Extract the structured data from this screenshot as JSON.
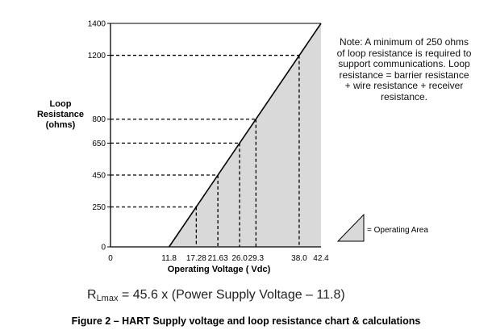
{
  "chart_data": {
    "type": "area",
    "title": "",
    "xlabel": "Operating Voltage ( Vdc)",
    "ylabel": "Loop Resistance (ohms)",
    "ylabel_lines": [
      "Loop",
      "Resistance",
      "(ohms)"
    ],
    "xlim": [
      0,
      42.4
    ],
    "ylim": [
      0,
      1400
    ],
    "x_ticks": [
      "0",
      "11.8",
      "17.28",
      "21.63",
      "26.0",
      "29.3",
      "38.0",
      "42.4"
    ],
    "y_ticks": [
      "0",
      "250",
      "450",
      "650",
      "800",
      "1200",
      "1400"
    ],
    "series": [
      {
        "x": [
          11.8,
          42.4
        ],
        "y": [
          0,
          1400
        ]
      }
    ],
    "reference_points": [
      {
        "x": 17.28,
        "y": 250
      },
      {
        "x": 21.63,
        "y": 450
      },
      {
        "x": 26.0,
        "y": 650
      },
      {
        "x": 29.3,
        "y": 800
      },
      {
        "x": 38.0,
        "y": 1200
      }
    ],
    "legend": {
      "label": "= Operating Area",
      "placement": "bottom-right"
    },
    "colors": {
      "fill": "#d9d9d9",
      "line": "#000000",
      "guide": "#000000"
    },
    "grid": false
  },
  "note": {
    "lines": [
      "Note: A minimum of 250 ohms",
      "of loop resistance is required to",
      "support communications. Loop",
      "resistance = barrier resistance",
      "+ wire resistance + receiver",
      "resistance."
    ]
  },
  "formula": {
    "symbol": "R",
    "subscript": "Lmax",
    "expression": " = 45.6 x (Power Supply Voltage – 11.8)"
  },
  "caption": "Figure 2 – HART Supply voltage and loop resistance chart & calculations"
}
